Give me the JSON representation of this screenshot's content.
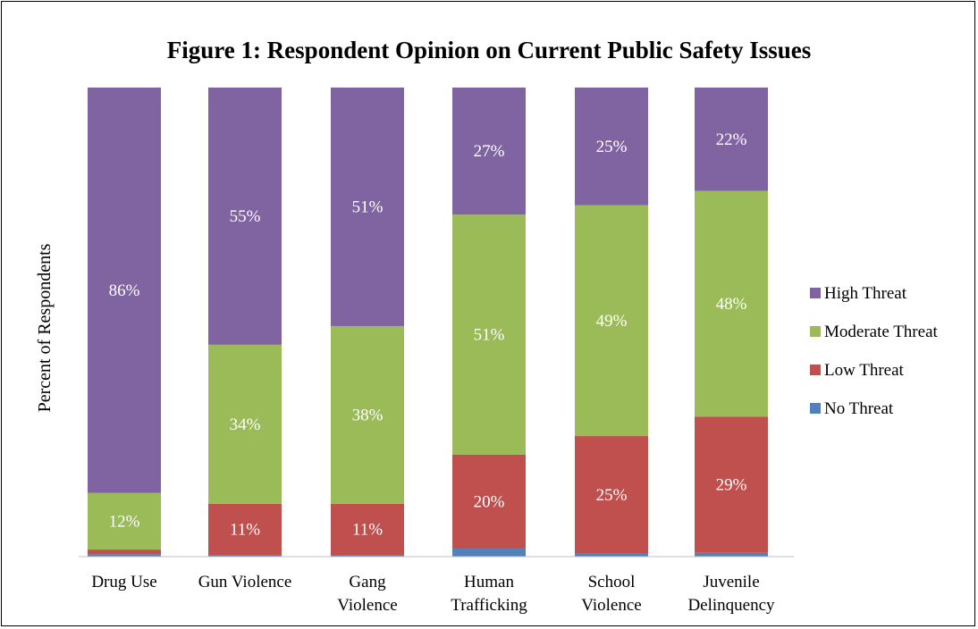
{
  "chart_data": {
    "type": "bar",
    "stacked": true,
    "percent_stacked": true,
    "title": "Figure 1: Respondent Opinion on Current Public Safety Issues",
    "ylabel": "Percent of Respondents",
    "xlabel": "",
    "ylim": [
      0,
      100
    ],
    "grid": false,
    "legend_position": "right",
    "categories": [
      [
        "Drug Use"
      ],
      [
        "Gun Violence"
      ],
      [
        "Gang",
        "Violence"
      ],
      [
        "Human",
        "Trafficking"
      ],
      [
        "School",
        "Violence"
      ],
      [
        "Juvenile",
        "Delinquency"
      ]
    ],
    "series": [
      {
        "name": "No Threat",
        "color": "#4f81bd",
        "values": [
          0.5,
          0.3,
          0.3,
          1.7,
          0.6,
          0.8
        ]
      },
      {
        "name": "Low Threat",
        "color": "#c0504d",
        "values": [
          1,
          11,
          11,
          20,
          25,
          29
        ]
      },
      {
        "name": "Moderate Threat",
        "color": "#9bbb59",
        "values": [
          12,
          34,
          38,
          51,
          49,
          48
        ]
      },
      {
        "name": "High Threat",
        "color": "#8064a2",
        "values": [
          86,
          55,
          51,
          27,
          25,
          22
        ]
      }
    ],
    "data_labels": {
      "No Threat": [
        "",
        "",
        "",
        "",
        "",
        ""
      ],
      "Low Threat": [
        "",
        "11%",
        "11%",
        "20%",
        "25%",
        "29%"
      ],
      "Moderate Threat": [
        "12%",
        "34%",
        "38%",
        "51%",
        "49%",
        "48%"
      ],
      "High Threat": [
        "86%",
        "55%",
        "51%",
        "27%",
        "25%",
        "22%"
      ]
    },
    "legend_order": [
      "High Threat",
      "Moderate Threat",
      "Low Threat",
      "No Threat"
    ]
  }
}
